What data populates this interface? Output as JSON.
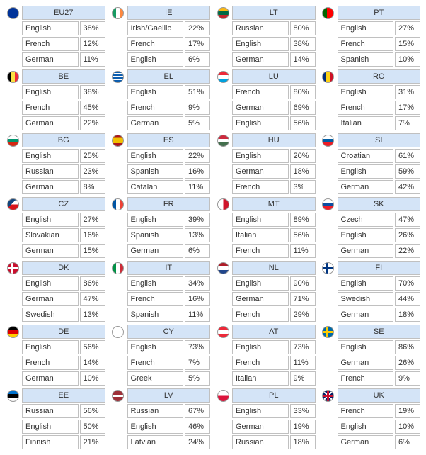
{
  "colors": {
    "header_bg": "#d4e4f7",
    "border": "#c0c0c0",
    "text": "#333333",
    "page_bg": "#ffffff"
  },
  "columns": 4,
  "countries": [
    {
      "code": "EU27",
      "flag_css": "background: radial-gradient(circle at 50% 50%, #003399 60%, #003399 100%); box-shadow: inset 0 0 0 4px #003399;",
      "langs": [
        [
          "English",
          "38%"
        ],
        [
          "French",
          "12%"
        ],
        [
          "German",
          "11%"
        ]
      ]
    },
    {
      "code": "IE",
      "flag_css": "background: linear-gradient(90deg,#169b62 33%,#fff 33%,#fff 66%,#ff883e 66%);",
      "langs": [
        [
          "Irish/Gaellic",
          "22%"
        ],
        [
          "French",
          "17%"
        ],
        [
          "English",
          "6%"
        ]
      ]
    },
    {
      "code": "LT",
      "flag_css": "background: linear-gradient(#fdb913 33%,#006a44 33%,#006a44 66%,#c1272d 66%);",
      "langs": [
        [
          "Russian",
          "80%"
        ],
        [
          "English",
          "38%"
        ],
        [
          "German",
          "14%"
        ]
      ]
    },
    {
      "code": "PT",
      "flag_css": "background: linear-gradient(90deg,#006600 40%,#ff0000 40%);",
      "langs": [
        [
          "English",
          "27%"
        ],
        [
          "French",
          "15%"
        ],
        [
          "Spanish",
          "10%"
        ]
      ]
    },
    {
      "code": "BE",
      "flag_css": "background: linear-gradient(90deg,#000 33%,#fae042 33%,#fae042 66%,#ed2939 66%);",
      "langs": [
        [
          "English",
          "38%"
        ],
        [
          "French",
          "45%"
        ],
        [
          "German",
          "22%"
        ]
      ]
    },
    {
      "code": "EL",
      "flag_css": "background: repeating-linear-gradient(#0d5eaf 0 2px,#fff 2px 4px);",
      "langs": [
        [
          "English",
          "51%"
        ],
        [
          "French",
          "9%"
        ],
        [
          "German",
          "5%"
        ]
      ]
    },
    {
      "code": "LU",
      "flag_css": "background: linear-gradient(#ed2939 33%,#fff 33%,#fff 66%,#00a1de 66%);",
      "langs": [
        [
          "French",
          "80%"
        ],
        [
          "German",
          "69%"
        ],
        [
          "English",
          "56%"
        ]
      ]
    },
    {
      "code": "RO",
      "flag_css": "background: linear-gradient(90deg,#002b7f 33%,#fcd116 33%,#fcd116 66%,#ce1126 66%);",
      "langs": [
        [
          "English",
          "31%"
        ],
        [
          "French",
          "17%"
        ],
        [
          "Italian",
          "7%"
        ]
      ]
    },
    {
      "code": "BG",
      "flag_css": "background: linear-gradient(#fff 33%,#00966e 33%,#00966e 66%,#d62612 66%);",
      "langs": [
        [
          "English",
          "25%"
        ],
        [
          "Russian",
          "23%"
        ],
        [
          "German",
          "8%"
        ]
      ]
    },
    {
      "code": "ES",
      "flag_css": "background: linear-gradient(#aa151b 25%,#f1bf00 25%,#f1bf00 75%,#aa151b 75%);",
      "langs": [
        [
          "English",
          "22%"
        ],
        [
          "Spanish",
          "16%"
        ],
        [
          "Catalan",
          "11%"
        ]
      ]
    },
    {
      "code": "HU",
      "flag_css": "background: linear-gradient(#cd2a3e 33%,#fff 33%,#fff 66%,#436f4d 66%);",
      "langs": [
        [
          "English",
          "20%"
        ],
        [
          "German",
          "18%"
        ],
        [
          "French",
          "3%"
        ]
      ]
    },
    {
      "code": "SI",
      "flag_css": "background: linear-gradient(#fff 33%,#005da4 33%,#005da4 66%,#ed1c24 66%);",
      "langs": [
        [
          "Croatian",
          "61%"
        ],
        [
          "English",
          "59%"
        ],
        [
          "German",
          "42%"
        ]
      ]
    },
    {
      "code": "CZ",
      "flag_css": "background: linear-gradient(135deg,#11457e 40%,transparent 40%), linear-gradient(#fff 50%,#d7141a 50%);",
      "langs": [
        [
          "English",
          "27%"
        ],
        [
          "Slovakian",
          "16%"
        ],
        [
          "German",
          "15%"
        ]
      ]
    },
    {
      "code": "FR",
      "flag_css": "background: linear-gradient(90deg,#0055a4 33%,#fff 33%,#fff 66%,#ef4135 66%);",
      "langs": [
        [
          "English",
          "39%"
        ],
        [
          "Spanish",
          "13%"
        ],
        [
          "German",
          "6%"
        ]
      ]
    },
    {
      "code": "MT",
      "flag_css": "background: linear-gradient(90deg,#fff 50%,#cf142b 50%);",
      "langs": [
        [
          "English",
          "89%"
        ],
        [
          "Italian",
          "56%"
        ],
        [
          "French",
          "11%"
        ]
      ]
    },
    {
      "code": "SK",
      "flag_css": "background: linear-gradient(#fff 33%,#0b4ea2 33%,#0b4ea2 66%,#ee1c25 66%);",
      "langs": [
        [
          "Czech",
          "47%"
        ],
        [
          "English",
          "26%"
        ],
        [
          "German",
          "22%"
        ]
      ]
    },
    {
      "code": "DK",
      "flag_css": "background:#c8102e; position:relative;",
      "flag_extra": "cross-white",
      "langs": [
        [
          "English",
          "86%"
        ],
        [
          "German",
          "47%"
        ],
        [
          "Swedish",
          "13%"
        ]
      ]
    },
    {
      "code": "IT",
      "flag_css": "background: linear-gradient(90deg,#009246 33%,#fff 33%,#fff 66%,#ce2b37 66%);",
      "langs": [
        [
          "English",
          "34%"
        ],
        [
          "French",
          "16%"
        ],
        [
          "Spanish",
          "11%"
        ]
      ]
    },
    {
      "code": "NL",
      "flag_css": "background: linear-gradient(#ae1c28 33%,#fff 33%,#fff 66%,#21468b 66%);",
      "langs": [
        [
          "English",
          "90%"
        ],
        [
          "German",
          "71%"
        ],
        [
          "French",
          "29%"
        ]
      ]
    },
    {
      "code": "FI",
      "flag_css": "background:#fff;",
      "flag_extra": "cross-blue",
      "langs": [
        [
          "English",
          "70%"
        ],
        [
          "Swedish",
          "44%"
        ],
        [
          "German",
          "18%"
        ]
      ]
    },
    {
      "code": "DE",
      "flag_css": "background: linear-gradient(#000 33%,#dd0000 33%,#dd0000 66%,#ffce00 66%);",
      "langs": [
        [
          "English",
          "56%"
        ],
        [
          "French",
          "14%"
        ],
        [
          "German",
          "10%"
        ]
      ]
    },
    {
      "code": "CY",
      "flag_css": "background:#fff;",
      "langs": [
        [
          "English",
          "73%"
        ],
        [
          "French",
          "7%"
        ],
        [
          "Greek",
          "5%"
        ]
      ]
    },
    {
      "code": "AT",
      "flag_css": "background: linear-gradient(#ed2939 33%,#fff 33%,#fff 66%,#ed2939 66%);",
      "langs": [
        [
          "English",
          "73%"
        ],
        [
          "French",
          "11%"
        ],
        [
          "Italian",
          "9%"
        ]
      ]
    },
    {
      "code": "SE",
      "flag_css": "background:#006aa7;",
      "flag_extra": "cross-yellow",
      "langs": [
        [
          "English",
          "86%"
        ],
        [
          "German",
          "26%"
        ],
        [
          "French",
          "9%"
        ]
      ]
    },
    {
      "code": "EE",
      "flag_css": "background: linear-gradient(#0072ce 33%,#000 33%,#000 66%,#fff 66%);",
      "langs": [
        [
          "Russian",
          "56%"
        ],
        [
          "English",
          "50%"
        ],
        [
          "Finnish",
          "21%"
        ]
      ]
    },
    {
      "code": "LV",
      "flag_css": "background: linear-gradient(#9e3039 40%,#fff 40%,#fff 60%,#9e3039 60%);",
      "langs": [
        [
          "Russian",
          "67%"
        ],
        [
          "English",
          "46%"
        ],
        [
          "Latvian",
          "24%"
        ]
      ]
    },
    {
      "code": "PL",
      "flag_css": "background: linear-gradient(#fff 50%,#dc143c 50%);",
      "langs": [
        [
          "English",
          "33%"
        ],
        [
          "German",
          "19%"
        ],
        [
          "Russian",
          "18%"
        ]
      ]
    },
    {
      "code": "UK",
      "flag_css": "background:#012169;",
      "flag_extra": "uk",
      "langs": [
        [
          "French",
          "19%"
        ],
        [
          "English",
          "10%"
        ],
        [
          "German",
          "6%"
        ]
      ]
    }
  ]
}
